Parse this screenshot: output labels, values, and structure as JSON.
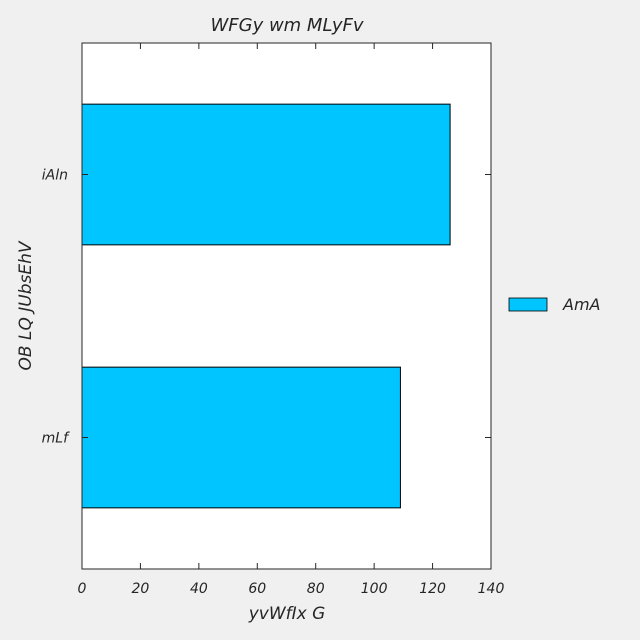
{
  "chart_data": {
    "type": "bar",
    "orientation": "horizontal",
    "title": "WFGy wm MLyFv",
    "xlabel": "yvWfIx G",
    "ylabel": "OB LQ  JUbsEhV",
    "categories": [
      "iAln",
      "mLf"
    ],
    "series": [
      {
        "name": "AmA",
        "values": [
          126,
          109
        ],
        "color": "#00c5ff"
      }
    ],
    "xlim": [
      0,
      140
    ],
    "xticks": [
      0,
      20,
      40,
      60,
      80,
      100,
      120,
      140
    ],
    "grid": false,
    "legend": "right"
  },
  "colors": {
    "background": "#f0f0f0",
    "plot_background": "#ffffff",
    "bar_edge": "#000000",
    "text": "#262626"
  }
}
